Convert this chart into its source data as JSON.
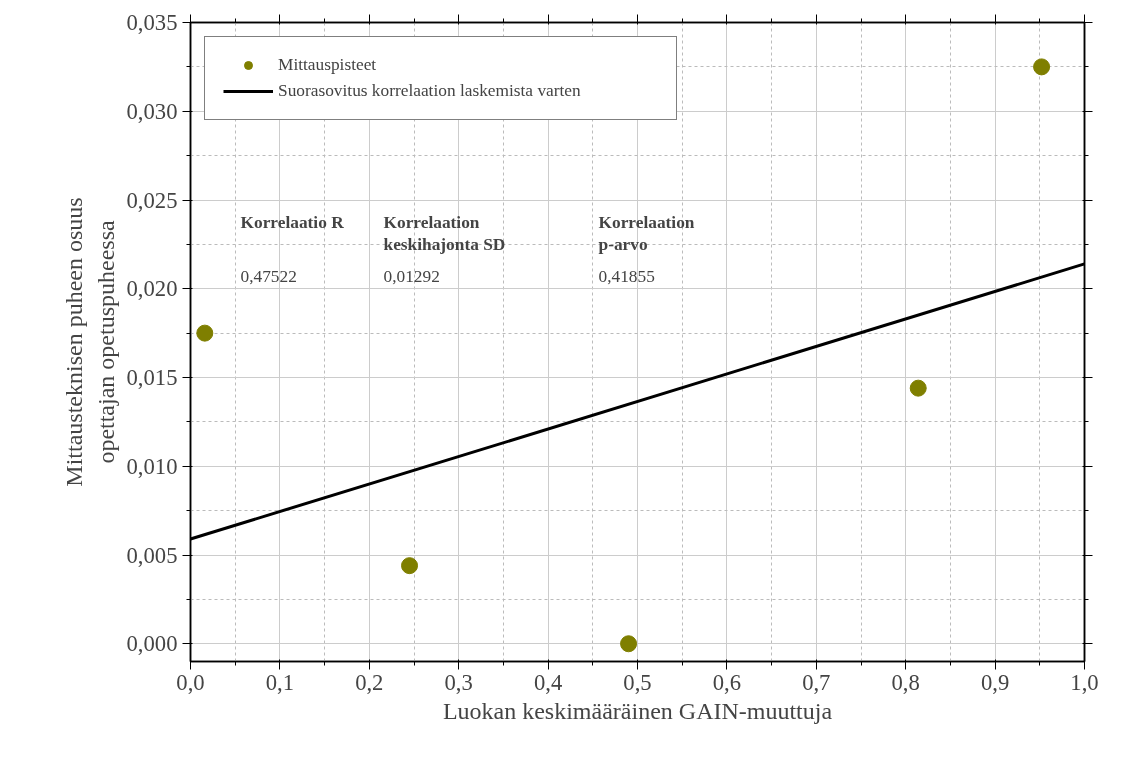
{
  "chart_data": {
    "type": "scatter",
    "xlabel": "Luokan keskimääräinen GAIN-muuttuja",
    "ylabel": "Mittausteknisen puheen osuus opettajan opetuspuheessa",
    "xlim": [
      0,
      1
    ],
    "ylim": [
      -0.001,
      0.035
    ],
    "xticks": [
      {
        "value": 0,
        "label": "0,0"
      },
      {
        "value": 0.05,
        "label": null
      },
      {
        "value": 0.1,
        "label": "0,1"
      },
      {
        "value": 0.15,
        "label": null
      },
      {
        "value": 0.2,
        "label": "0,2"
      },
      {
        "value": 0.25,
        "label": null
      },
      {
        "value": 0.3,
        "label": "0,3"
      },
      {
        "value": 0.35,
        "label": null
      },
      {
        "value": 0.4,
        "label": "0,4"
      },
      {
        "value": 0.45,
        "label": null
      },
      {
        "value": 0.5,
        "label": "0,5"
      },
      {
        "value": 0.55,
        "label": null
      },
      {
        "value": 0.6,
        "label": "0,6"
      },
      {
        "value": 0.65,
        "label": null
      },
      {
        "value": 0.7,
        "label": "0,7"
      },
      {
        "value": 0.75,
        "label": null
      },
      {
        "value": 0.8,
        "label": "0,8"
      },
      {
        "value": 0.85,
        "label": null
      },
      {
        "value": 0.9,
        "label": "0,9"
      },
      {
        "value": 0.95,
        "label": null
      },
      {
        "value": 1,
        "label": "1,0"
      }
    ],
    "yticks": [
      {
        "value": 0,
        "label": "0,000"
      },
      {
        "value": 0.0025,
        "label": null
      },
      {
        "value": 0.005,
        "label": "0,005"
      },
      {
        "value": 0.0075,
        "label": null
      },
      {
        "value": 0.01,
        "label": "0,010"
      },
      {
        "value": 0.0125,
        "label": null
      },
      {
        "value": 0.015,
        "label": "0,015"
      },
      {
        "value": 0.0175,
        "label": null
      },
      {
        "value": 0.02,
        "label": "0,020"
      },
      {
        "value": 0.0225,
        "label": null
      },
      {
        "value": 0.025,
        "label": "0,025"
      },
      {
        "value": 0.0275,
        "label": null
      },
      {
        "value": 0.03,
        "label": "0,030"
      },
      {
        "value": 0.0325,
        "label": null
      },
      {
        "value": 0.035,
        "label": "0,035"
      }
    ],
    "grid": true,
    "legend": "top left",
    "series": [
      {
        "name": "Mittauspisteet",
        "marker": "circle",
        "color": "#7f7f00",
        "x": [
          0.016,
          0.245,
          0.49,
          0.814,
          0.952
        ],
        "values": [
          0.0175,
          0.0044,
          0.0,
          0.0144,
          0.0325
        ]
      },
      {
        "name": "Suorasovitus korrelaation laskemista varten",
        "type": "line",
        "color": "#000000",
        "line_style": "solid",
        "x": [
          0,
          1
        ],
        "values": [
          0.0059,
          0.0214
        ]
      }
    ],
    "annotations": [
      "Korrelaatio R",
      "Korrelaation\nkeskihajonta SD",
      "Korrelaation\np-arvo",
      "0,47522",
      "0,01292",
      "0,41855"
    ]
  }
}
